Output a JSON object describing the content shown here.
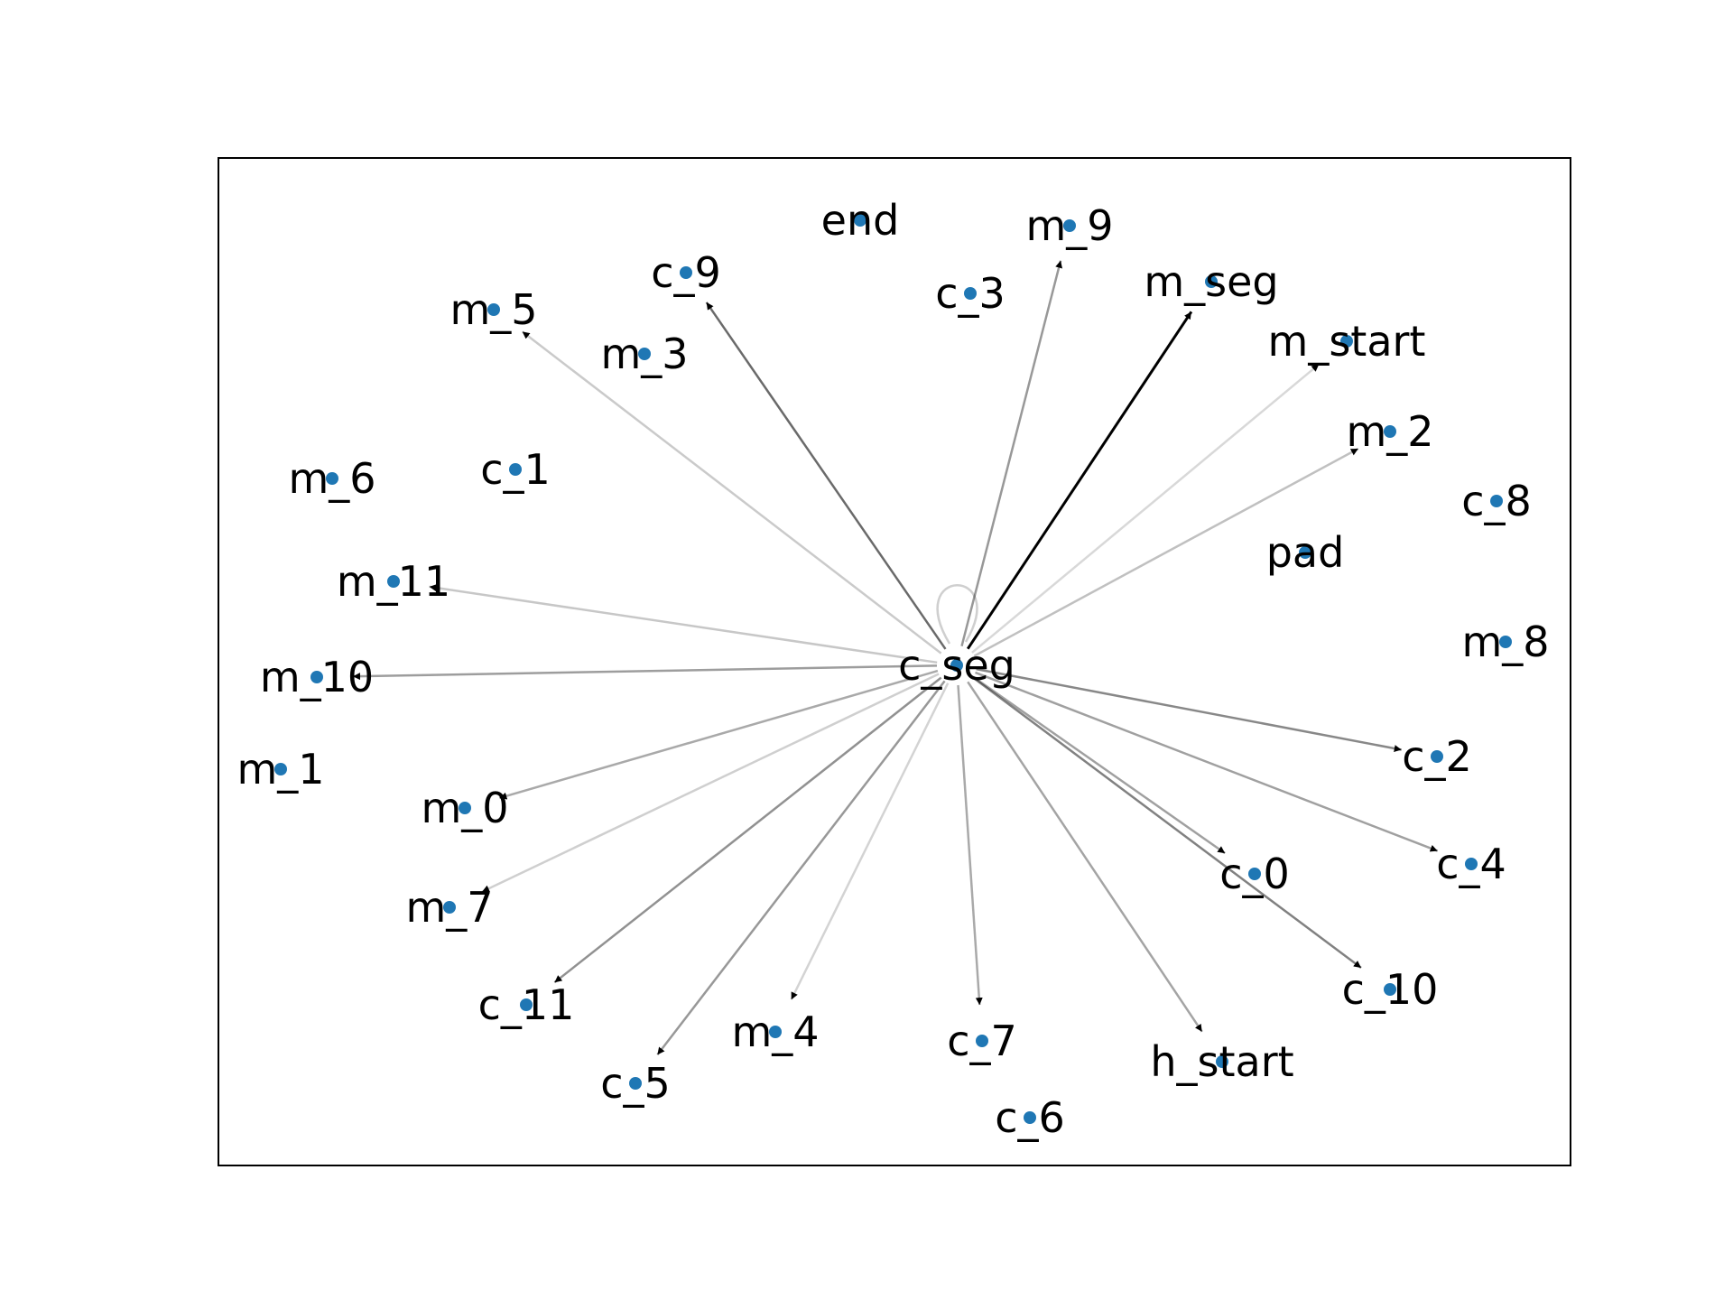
{
  "graph": {
    "node_color": "#1f77b4",
    "edge_color": "#000000",
    "nodes": [
      {
        "id": "c_seg",
        "label": "c_seg"
      },
      {
        "id": "end",
        "label": "end"
      },
      {
        "id": "m_9",
        "label": "m_9"
      },
      {
        "id": "c_9",
        "label": "c_9"
      },
      {
        "id": "m_seg",
        "label": "m_seg"
      },
      {
        "id": "c_3",
        "label": "c_3"
      },
      {
        "id": "m_5",
        "label": "m_5"
      },
      {
        "id": "m_3",
        "label": "m_3"
      },
      {
        "id": "m_start",
        "label": "m_start"
      },
      {
        "id": "m_2",
        "label": "m_2"
      },
      {
        "id": "m_6",
        "label": "m_6"
      },
      {
        "id": "c_1",
        "label": "c_1"
      },
      {
        "id": "c_8",
        "label": "c_8"
      },
      {
        "id": "pad",
        "label": "pad"
      },
      {
        "id": "m_11",
        "label": "m_11"
      },
      {
        "id": "m_8",
        "label": "m_8"
      },
      {
        "id": "m_10",
        "label": "m_10"
      },
      {
        "id": "c_2",
        "label": "c_2"
      },
      {
        "id": "m_1",
        "label": "m_1"
      },
      {
        "id": "m_0",
        "label": "m_0"
      },
      {
        "id": "c_0",
        "label": "c_0"
      },
      {
        "id": "c_4",
        "label": "c_4"
      },
      {
        "id": "m_7",
        "label": "m_7"
      },
      {
        "id": "c_11",
        "label": "c_11"
      },
      {
        "id": "c_10",
        "label": "c_10"
      },
      {
        "id": "m_4",
        "label": "m_4"
      },
      {
        "id": "c_7",
        "label": "c_7"
      },
      {
        "id": "h_start",
        "label": "h_start"
      },
      {
        "id": "c_5",
        "label": "c_5"
      },
      {
        "id": "c_6",
        "label": "c_6"
      }
    ],
    "edges": [
      {
        "source": "c_seg",
        "target": "m_seg",
        "weight": 1.0
      },
      {
        "source": "c_seg",
        "target": "c_9",
        "weight": 0.55
      },
      {
        "source": "c_seg",
        "target": "c_10",
        "weight": 0.45
      },
      {
        "source": "c_seg",
        "target": "c_2",
        "weight": 0.42
      },
      {
        "source": "c_seg",
        "target": "c_11",
        "weight": 0.38
      },
      {
        "source": "c_seg",
        "target": "m_9",
        "weight": 0.35
      },
      {
        "source": "c_seg",
        "target": "c_5",
        "weight": 0.35
      },
      {
        "source": "c_seg",
        "target": "m_10",
        "weight": 0.33
      },
      {
        "source": "c_seg",
        "target": "c_0",
        "weight": 0.32
      },
      {
        "source": "c_seg",
        "target": "c_4",
        "weight": 0.32
      },
      {
        "source": "c_seg",
        "target": "h_start",
        "weight": 0.3
      },
      {
        "source": "c_seg",
        "target": "m_0",
        "weight": 0.28
      },
      {
        "source": "c_seg",
        "target": "c_7",
        "weight": 0.28
      },
      {
        "source": "c_seg",
        "target": "m_2",
        "weight": 0.18
      },
      {
        "source": "c_seg",
        "target": "m_11",
        "weight": 0.15
      },
      {
        "source": "c_seg",
        "target": "m_5",
        "weight": 0.14
      },
      {
        "source": "c_seg",
        "target": "m_7",
        "weight": 0.12
      },
      {
        "source": "c_seg",
        "target": "m_4",
        "weight": 0.1
      },
      {
        "source": "c_seg",
        "target": "m_start",
        "weight": 0.08
      },
      {
        "source": "c_seg",
        "target": "c_seg",
        "weight": 0.12
      }
    ]
  }
}
